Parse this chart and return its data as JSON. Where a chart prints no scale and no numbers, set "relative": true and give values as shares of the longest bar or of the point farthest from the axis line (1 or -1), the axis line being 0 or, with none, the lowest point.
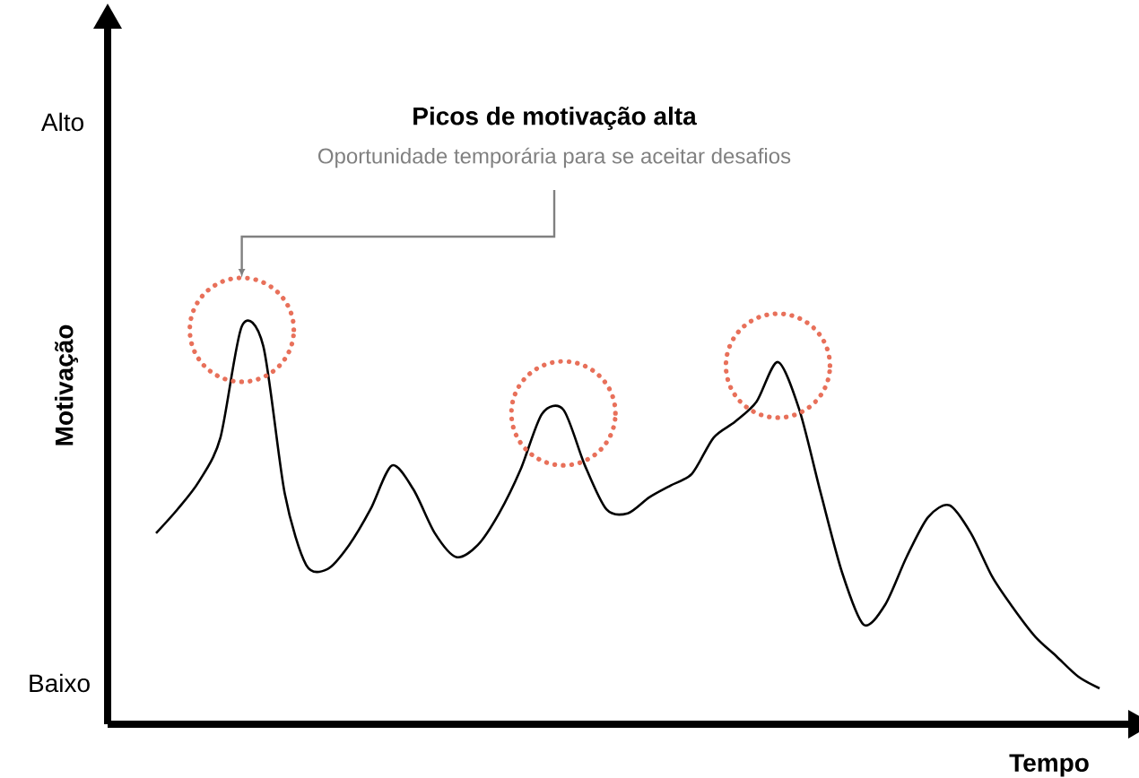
{
  "chart_data": {
    "type": "line",
    "relative": true,
    "categories": [
      null,
      null,
      null,
      null,
      null,
      null,
      null,
      null,
      null,
      null,
      null,
      null,
      null,
      null,
      null,
      null,
      null,
      null,
      null,
      null,
      null,
      null,
      null,
      null,
      null,
      null,
      null,
      null,
      null,
      null,
      null,
      null,
      null,
      null,
      null,
      null,
      null,
      null,
      null,
      null,
      null,
      null,
      null,
      null,
      null
    ],
    "values": [
      0.48,
      0.54,
      0.61,
      0.72,
      1.0,
      0.95,
      0.58,
      0.4,
      0.39,
      0.45,
      0.54,
      0.65,
      0.59,
      0.48,
      0.42,
      0.45,
      0.53,
      0.64,
      0.78,
      0.79,
      0.65,
      0.54,
      0.53,
      0.57,
      0.6,
      0.63,
      0.72,
      0.76,
      0.81,
      0.91,
      0.79,
      0.58,
      0.38,
      0.25,
      0.3,
      0.42,
      0.52,
      0.55,
      0.48,
      0.37,
      0.29,
      0.22,
      0.17,
      0.12,
      0.09
    ],
    "color": "#000000",
    "xlabel": "Tempo",
    "ylabel": "Motivação",
    "annotations": [
      "Picos de motivação alta",
      "Oportunidade temporária para se aceitar desafios",
      "Alto",
      "Baixo"
    ]
  }
}
